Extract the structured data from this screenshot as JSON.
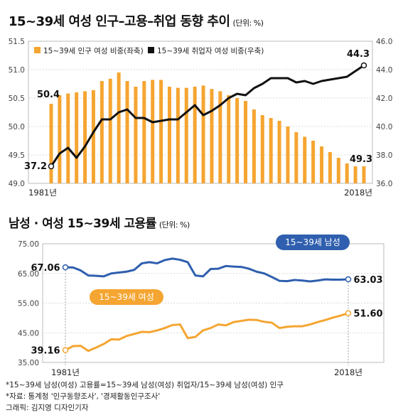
{
  "header": {
    "title": "15~39세 여성 인구–고용–취업 동향 추이",
    "unit": "(단위: %)"
  },
  "header2": {
    "title": "남성 · 여성 15~39세 고용률",
    "unit": "(단위: %)"
  },
  "colors": {
    "orange": "#f5a531",
    "black": "#111111",
    "blue": "#2f5fae",
    "grid": "#d0d0d0"
  },
  "chart_data": [
    {
      "type": "bar+line",
      "x_start": "1981년",
      "x_end": "2018년",
      "years": [
        1981,
        1982,
        1983,
        1984,
        1985,
        1986,
        1987,
        1988,
        1989,
        1990,
        1991,
        1992,
        1993,
        1994,
        1995,
        1996,
        1997,
        1998,
        1999,
        2000,
        2001,
        2002,
        2003,
        2004,
        2005,
        2006,
        2007,
        2008,
        2009,
        2010,
        2011,
        2012,
        2013,
        2014,
        2015,
        2016,
        2017,
        2018
      ],
      "left_axis": {
        "ticks": [
          "49.0",
          "49.5",
          "50.0",
          "50.5",
          "51.0",
          "51.5"
        ],
        "ylim": [
          49.0,
          51.5
        ]
      },
      "right_axis": {
        "ticks": [
          "36.0",
          "38.0",
          "40.0",
          "42.0",
          "44.0",
          "46.0"
        ],
        "ylim": [
          36.0,
          46.0
        ]
      },
      "series": [
        {
          "name": "15~39세 인구 여성 비중(좌축)",
          "type": "bar",
          "axis": "left",
          "values": [
            50.4,
            50.55,
            50.58,
            50.6,
            50.62,
            50.64,
            50.8,
            50.84,
            50.95,
            50.8,
            50.7,
            50.8,
            50.82,
            50.82,
            50.7,
            50.68,
            50.68,
            50.7,
            50.72,
            50.66,
            50.62,
            50.55,
            50.5,
            50.45,
            50.3,
            50.2,
            50.15,
            50.1,
            50.0,
            49.9,
            49.82,
            49.75,
            49.65,
            49.55,
            49.45,
            49.35,
            49.3,
            49.3
          ]
        },
        {
          "name": "15~39세 취업자 여성 비중(우축)",
          "type": "line",
          "axis": "right",
          "values": [
            37.2,
            38.1,
            38.5,
            37.8,
            38.6,
            39.6,
            40.5,
            40.5,
            41.0,
            41.2,
            40.6,
            40.6,
            40.3,
            40.4,
            40.5,
            40.5,
            41.0,
            41.5,
            40.8,
            41.1,
            41.5,
            42.0,
            42.3,
            42.2,
            42.7,
            43.0,
            43.4,
            43.4,
            43.4,
            43.1,
            43.2,
            43.0,
            43.2,
            43.3,
            43.4,
            43.5,
            43.9,
            44.3
          ]
        }
      ],
      "labels": {
        "bar_first": "50.4",
        "bar_last": "49.3",
        "line_first": "37.2",
        "line_last": "44.3"
      }
    },
    {
      "type": "line",
      "x_start": "1981년",
      "x_end": "2018년",
      "years": [
        1981,
        1982,
        1983,
        1984,
        1985,
        1986,
        1987,
        1988,
        1989,
        1990,
        1991,
        1992,
        1993,
        1994,
        1995,
        1996,
        1997,
        1998,
        1999,
        2000,
        2001,
        2002,
        2003,
        2004,
        2005,
        2006,
        2007,
        2008,
        2009,
        2010,
        2011,
        2012,
        2013,
        2014,
        2015,
        2016,
        2017,
        2018
      ],
      "y_axis": {
        "ticks": [
          "35.00",
          "45.00",
          "55.00",
          "65.00",
          "75.00"
        ],
        "ylim": [
          35,
          75
        ]
      },
      "series": [
        {
          "name": "15~39세 남성",
          "color": "blue",
          "values": [
            67.06,
            67.0,
            66.0,
            64.3,
            64.2,
            64.0,
            65.0,
            65.3,
            65.6,
            66.2,
            68.4,
            68.8,
            68.4,
            69.5,
            70.0,
            69.6,
            68.8,
            64.3,
            64.0,
            66.5,
            66.6,
            67.5,
            67.3,
            67.2,
            66.6,
            65.6,
            65.0,
            63.8,
            62.5,
            62.4,
            62.8,
            62.6,
            62.3,
            62.6,
            63.0,
            62.9,
            62.9,
            63.03
          ]
        },
        {
          "name": "15~39세 여성",
          "color": "orange",
          "values": [
            39.16,
            40.5,
            40.6,
            38.9,
            40.0,
            41.2,
            42.8,
            42.7,
            43.9,
            44.6,
            45.3,
            45.2,
            45.8,
            46.6,
            47.6,
            47.8,
            43.2,
            43.6,
            45.8,
            46.6,
            47.8,
            47.5,
            48.6,
            49.0,
            49.4,
            49.3,
            48.7,
            48.4,
            46.6,
            47.0,
            47.2,
            47.2,
            47.8,
            48.6,
            49.3,
            50.1,
            50.8,
            51.6
          ]
        }
      ],
      "labels": {
        "male_first": "67.06",
        "male_last": "63.03",
        "female_first": "39.16",
        "female_last": "51.60"
      }
    }
  ],
  "notes": [
    "*15~39세 남성(여성) 고용률=15~39세 남성(여성) 취업자/15~39세 남성(여성) 인구",
    "*자료: 통계청 '인구동향조사', '경제활동인구조사'",
    "그래픽: 김지영 디자인기자"
  ]
}
